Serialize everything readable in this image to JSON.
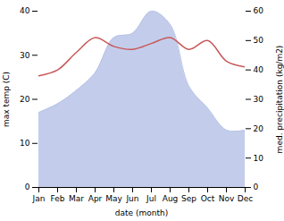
{
  "chart_data": {
    "type": "line",
    "categories": [
      "Jan",
      "Feb",
      "Mar",
      "Apr",
      "May",
      "Jun",
      "Jul",
      "Aug",
      "Sep",
      "Oct",
      "Nov",
      "Dec"
    ],
    "series": [
      {
        "type": "area",
        "color": "#b8c4e8",
        "values": [
          17,
          19,
          22,
          26,
          34,
          35,
          40,
          37,
          23,
          18,
          13,
          13
        ]
      },
      {
        "type": "line",
        "color": "#c85858",
        "axis": "y2",
        "values": [
          38,
          40,
          46,
          51,
          48,
          47,
          49,
          51,
          47,
          50,
          43,
          41
        ]
      }
    ],
    "xlabel": "date (month)",
    "ylabel": "max temp (C)",
    "y2label": "med. precipitation (kg/m2)",
    "ylim": [
      0,
      40
    ],
    "yticks": [
      0,
      10,
      20,
      30,
      40
    ],
    "y2lim": [
      0,
      60
    ],
    "y2ticks": [
      0,
      10,
      20,
      30,
      40,
      50,
      60
    ],
    "grid": false
  }
}
